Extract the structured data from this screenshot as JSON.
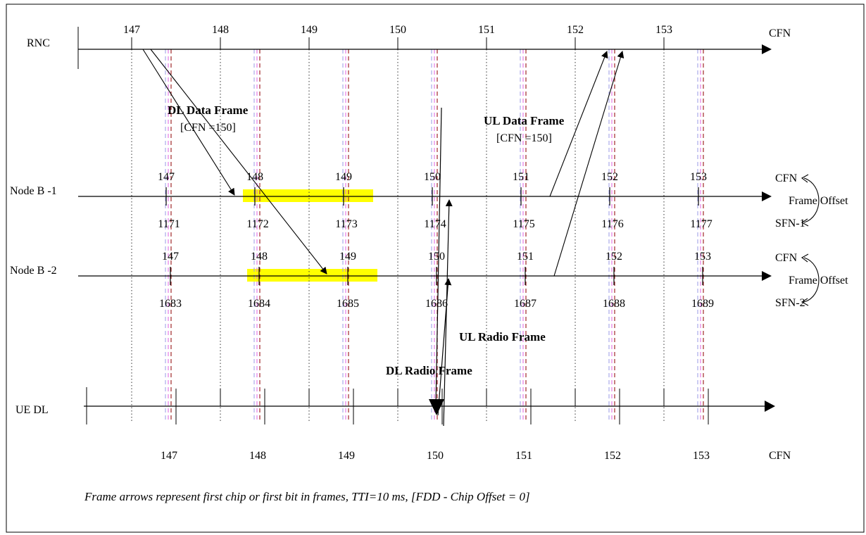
{
  "rnc": {
    "label": "RNC",
    "axis_label": "CFN",
    "ticks": [
      "147",
      "148",
      "149",
      "150",
      "151",
      "152",
      "153"
    ]
  },
  "nodeb1": {
    "label": "Node B -1",
    "cfn_ticks": [
      "147",
      "148",
      "149",
      "150",
      "151",
      "152",
      "153"
    ],
    "sfn_ticks": [
      "1171",
      "1172",
      "1173",
      "1174",
      "1175",
      "1176",
      "1177"
    ],
    "right_top": "CFN",
    "right_mid": "Frame Offset",
    "right_bottom": "SFN-1"
  },
  "nodeb2": {
    "label": "Node B -2",
    "cfn_ticks": [
      "147",
      "148",
      "149",
      "150",
      "151",
      "152",
      "153"
    ],
    "sfn_ticks": [
      "1683",
      "1684",
      "1685",
      "1686",
      "1687",
      "1688",
      "1689"
    ],
    "right_top": "CFN",
    "right_mid": "Frame Offset",
    "right_bottom": "SFN-2"
  },
  "ue": {
    "label": "UE DL",
    "ticks": [
      "147",
      "148",
      "149",
      "150",
      "151",
      "152",
      "153"
    ],
    "axis_label": "CFN"
  },
  "annotations": {
    "dl_data_title": "DL Data Frame",
    "dl_data_sub": "[CFN =150]",
    "ul_data_title": "UL Data Frame",
    "ul_data_sub": "[CFN =150]",
    "ul_radio": "UL Radio Frame",
    "dl_radio": "DL Radio Frame"
  },
  "caption": "Frame arrows represent first chip or first bit in frames, TTI=10 ms, [FDD - Chip Offset = 0]",
  "colors": {
    "highlight": "#ffff00",
    "red_dash": "#a0282a",
    "pink_dash": "#e060e0",
    "lilac_dash": "#9a9ae6"
  }
}
